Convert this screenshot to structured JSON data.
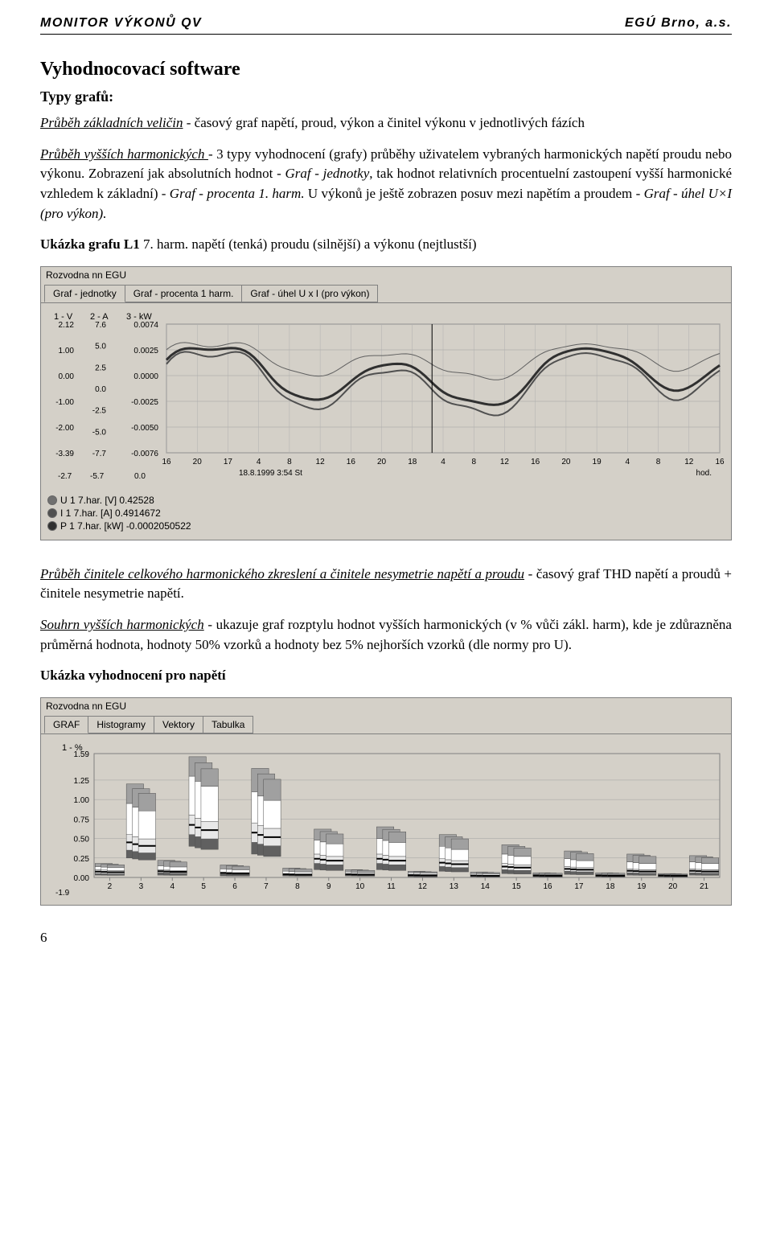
{
  "header": {
    "left": "MONITOR VÝKONŮ QV",
    "right": "EGÚ Brno, a.s."
  },
  "h1": "Vyhodnocovací software",
  "h2": "Typy grafů:",
  "p1_u": "Průběh základních veličin",
  "p1_rest": " - časový graf napětí, proud, výkon a činitel výkonu v jednotlivých fázích",
  "p2_u": "Průběh vyšších harmonických ",
  "p2_mid": "- 3 typy vyhodnocení (grafy) průběhy uživatelem vybraných harmonických napětí proudu nebo výkonu. Zobrazení jak absolutních hodnot - ",
  "p2_i1": "Graf - jednotky",
  "p2_mid2": ", tak hodnot relativních procentuelní zastoupení vyšší harmonické vzhledem k základní) - ",
  "p2_i2": "Graf - procenta 1. harm.",
  "p2_mid3": " U výkonů je ještě zobrazen posuv mezi napětím a proudem - ",
  "p2_i3": "Graf - úhel U×I (pro výkon).",
  "p3_b": "Ukázka grafu L1",
  "p3_rest": " 7. harm. napětí (tenká) proudu (silnější) a výkonu (nejtlustší)",
  "chart1": {
    "title": "Rozvodna nn EGU",
    "tabs": [
      "Graf - jednotky",
      "Graf - procenta 1 harm.",
      "Graf - úhel  U x I (pro výkon)"
    ],
    "active_tab": 0,
    "axis_headers": [
      "1 - V",
      "2 - A",
      "3 - kW"
    ],
    "y1_ticks": [
      "2.12",
      "1.00",
      "0.00",
      "-1.00",
      "-2.00",
      "-3.39"
    ],
    "y2_ticks": [
      "7.6",
      "5.0",
      "2.5",
      "0.0",
      "-2.5",
      "-5.0",
      "-7.7"
    ],
    "y3_ticks": [
      "0.0074",
      "0.0025",
      "0.0000",
      "-0.0025",
      "-0.0050",
      "-0.0076"
    ],
    "y1_bottom": "-2.7",
    "y2_bottom": "-5.7",
    "y3_bottom": "0.0",
    "x_ticks": [
      "16",
      "20",
      "17",
      "4",
      "8",
      "12",
      "16",
      "20",
      "18",
      "4",
      "8",
      "12",
      "16",
      "20",
      "19",
      "4",
      "8",
      "12",
      "16"
    ],
    "x_sub": "18.8.1999 3:54 St",
    "x_right": "hod.",
    "legend": [
      {
        "color": "#707070",
        "label": "U 1 7.har. [V] 0.42528"
      },
      {
        "color": "#505050",
        "label": "I 1 7.har. [A] 0.4914672"
      },
      {
        "color": "#303030",
        "label": "P 1 7.har. [kW] -0.0002050522"
      }
    ],
    "bg": "#d4d0c8",
    "grid": "#808080",
    "line_thin": {
      "color": "#606060",
      "width": 1
    },
    "line_mid": {
      "color": "#505050",
      "width": 2
    },
    "line_thick": {
      "color": "#303030",
      "width": 3
    }
  },
  "p4_u": "Průběh činitele celkového harmonického zkreslení a činitele nesymetrie napětí a proudu",
  "p4_rest": " - časový graf THD napětí a proudů + činitele nesymetrie napětí.",
  "p5_u": "Souhrn vyšších harmonických",
  "p5_rest": " - ukazuje graf rozptylu hodnot vyšších harmonických (v % vůči zákl. harm), kde je zdůrazněna průměrná hodnota, hodnoty 50% vzorků a hodnoty bez 5% nejhorších vzorků (dle normy pro U).",
  "p6_b": "Ukázka vyhodnocení pro napětí",
  "chart2": {
    "title": "Rozvodna nn EGU",
    "tabs": [
      "GRAF",
      "Histogramy",
      "Vektory",
      "Tabulka"
    ],
    "active_tab": 0,
    "y_label": "1 - %",
    "y_ticks": [
      "1.59",
      "1.25",
      "1.00",
      "0.75",
      "0.50",
      "0.25",
      "0.00"
    ],
    "y_bottom": "-1.9",
    "x_ticks": [
      "2",
      "3",
      "4",
      "5",
      "6",
      "7",
      "8",
      "9",
      "10",
      "11",
      "12",
      "13",
      "14",
      "15",
      "16",
      "17",
      "18",
      "19",
      "20",
      "21"
    ],
    "bg": "#d4d0c8",
    "grid": "#808080",
    "bars": [
      {
        "x": 2,
        "segs": [
          [
            0.03,
            0.05
          ],
          [
            0.05,
            0.1
          ],
          [
            0.1,
            0.14
          ],
          [
            0.14,
            0.18
          ]
        ]
      },
      {
        "x": 3,
        "segs": [
          [
            0.25,
            0.35
          ],
          [
            0.35,
            0.55
          ],
          [
            0.55,
            0.95
          ],
          [
            0.95,
            1.2
          ]
        ]
      },
      {
        "x": 4,
        "segs": [
          [
            0.03,
            0.06
          ],
          [
            0.06,
            0.1
          ],
          [
            0.1,
            0.15
          ],
          [
            0.15,
            0.22
          ]
        ]
      },
      {
        "x": 5,
        "segs": [
          [
            0.4,
            0.55
          ],
          [
            0.55,
            0.8
          ],
          [
            0.8,
            1.3
          ],
          [
            1.3,
            1.55
          ]
        ]
      },
      {
        "x": 6,
        "segs": [
          [
            0.02,
            0.04
          ],
          [
            0.04,
            0.07
          ],
          [
            0.07,
            0.11
          ],
          [
            0.11,
            0.16
          ]
        ]
      },
      {
        "x": 7,
        "segs": [
          [
            0.3,
            0.45
          ],
          [
            0.45,
            0.7
          ],
          [
            0.7,
            1.1
          ],
          [
            1.1,
            1.4
          ]
        ]
      },
      {
        "x": 8,
        "segs": [
          [
            0.02,
            0.03
          ],
          [
            0.03,
            0.05
          ],
          [
            0.05,
            0.08
          ],
          [
            0.08,
            0.12
          ]
        ]
      },
      {
        "x": 9,
        "segs": [
          [
            0.1,
            0.18
          ],
          [
            0.18,
            0.3
          ],
          [
            0.3,
            0.48
          ],
          [
            0.48,
            0.62
          ]
        ]
      },
      {
        "x": 10,
        "segs": [
          [
            0.02,
            0.03
          ],
          [
            0.03,
            0.05
          ],
          [
            0.05,
            0.07
          ],
          [
            0.07,
            0.1
          ]
        ]
      },
      {
        "x": 11,
        "segs": [
          [
            0.1,
            0.18
          ],
          [
            0.18,
            0.3
          ],
          [
            0.3,
            0.5
          ],
          [
            0.5,
            0.65
          ]
        ]
      },
      {
        "x": 12,
        "segs": [
          [
            0.01,
            0.02
          ],
          [
            0.02,
            0.04
          ],
          [
            0.04,
            0.06
          ],
          [
            0.06,
            0.08
          ]
        ]
      },
      {
        "x": 13,
        "segs": [
          [
            0.08,
            0.14
          ],
          [
            0.14,
            0.24
          ],
          [
            0.24,
            0.4
          ],
          [
            0.4,
            0.55
          ]
        ]
      },
      {
        "x": 14,
        "segs": [
          [
            0.01,
            0.02
          ],
          [
            0.02,
            0.03
          ],
          [
            0.03,
            0.05
          ],
          [
            0.05,
            0.07
          ]
        ]
      },
      {
        "x": 15,
        "segs": [
          [
            0.05,
            0.1
          ],
          [
            0.1,
            0.18
          ],
          [
            0.18,
            0.3
          ],
          [
            0.3,
            0.42
          ]
        ]
      },
      {
        "x": 16,
        "segs": [
          [
            0.01,
            0.02
          ],
          [
            0.02,
            0.03
          ],
          [
            0.03,
            0.04
          ],
          [
            0.04,
            0.06
          ]
        ]
      },
      {
        "x": 17,
        "segs": [
          [
            0.04,
            0.08
          ],
          [
            0.08,
            0.14
          ],
          [
            0.14,
            0.24
          ],
          [
            0.24,
            0.34
          ]
        ]
      },
      {
        "x": 18,
        "segs": [
          [
            0.01,
            0.02
          ],
          [
            0.02,
            0.03
          ],
          [
            0.03,
            0.04
          ],
          [
            0.04,
            0.06
          ]
        ]
      },
      {
        "x": 19,
        "segs": [
          [
            0.03,
            0.06
          ],
          [
            0.06,
            0.11
          ],
          [
            0.11,
            0.2
          ],
          [
            0.2,
            0.3
          ]
        ]
      },
      {
        "x": 20,
        "segs": [
          [
            0.01,
            0.02
          ],
          [
            0.02,
            0.03
          ],
          [
            0.03,
            0.04
          ],
          [
            0.04,
            0.05
          ]
        ]
      },
      {
        "x": 21,
        "segs": [
          [
            0.03,
            0.06
          ],
          [
            0.06,
            0.11
          ],
          [
            0.11,
            0.2
          ],
          [
            0.2,
            0.28
          ]
        ]
      }
    ],
    "seg_colors": [
      "#606060",
      "#e8e8e8",
      "#ffffff",
      "#a0a0a0"
    ],
    "median_color": "#000000"
  },
  "page_number": "6"
}
